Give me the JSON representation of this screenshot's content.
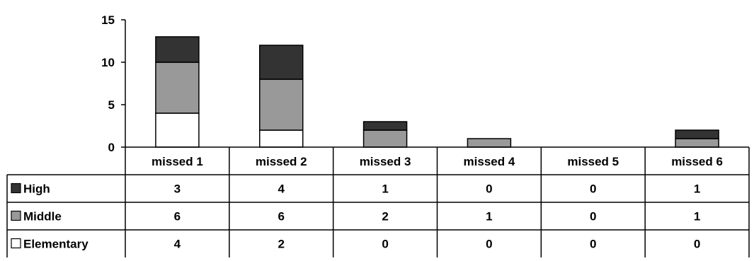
{
  "chart_data": {
    "type": "bar",
    "stacked": true,
    "categories": [
      "missed 1",
      "missed 2",
      "missed 3",
      "missed 4",
      "missed 5",
      "missed 6"
    ],
    "series": [
      {
        "name": "High",
        "values": [
          3,
          4,
          1,
          0,
          0,
          1
        ],
        "color": "#333333"
      },
      {
        "name": "Middle",
        "values": [
          6,
          6,
          2,
          1,
          0,
          1
        ],
        "color": "#999999"
      },
      {
        "name": "Elementary",
        "values": [
          4,
          2,
          0,
          0,
          0,
          0
        ],
        "color": "#ffffff"
      }
    ],
    "y_ticks": [
      "0",
      "5",
      "10",
      "15"
    ],
    "ylim": [
      0,
      15
    ],
    "grid": false,
    "legend": "data-table"
  }
}
